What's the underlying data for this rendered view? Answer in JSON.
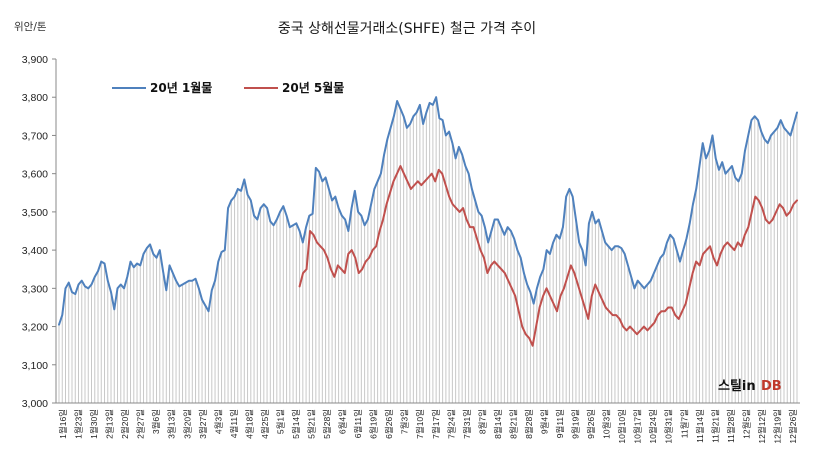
{
  "chart_data": {
    "type": "line",
    "title": "중국 상해선물거래소(SHFE)  철근 가격 추이",
    "unit_label": "위안/톤",
    "ylim": [
      3000,
      3900
    ],
    "y_ticks": [
      "3,000",
      "3,100",
      "3,200",
      "3,300",
      "3,400",
      "3,500",
      "3,600",
      "3,700",
      "3,800",
      "3,900"
    ],
    "legend_position": "top-left",
    "grid": false,
    "x_tick_labels": [
      "1월16일",
      "1월23일",
      "1월30일",
      "2월13일",
      "2월20일",
      "2월27일",
      "3월6일",
      "3월13일",
      "3월20일",
      "3월27일",
      "4월3일",
      "4월11일",
      "4월18일",
      "4월25일",
      "5월1일",
      "5월14일",
      "5월21일",
      "5월28일",
      "6월4일",
      "6월11일",
      "6월19일",
      "6월26일",
      "7월3일",
      "7월10일",
      "7월17일",
      "7월24일",
      "7월31일",
      "8월7일",
      "8월14일",
      "8월21일",
      "8월28일",
      "9월4일",
      "9월11일",
      "9월19일",
      "9월26일",
      "10월3일",
      "10월10일",
      "10월17일",
      "10월24일",
      "10월31일",
      "11월7일",
      "11월14일",
      "11월21일",
      "11월28일",
      "12월5일",
      "12월12일",
      "12월19일",
      "12월26일"
    ],
    "series": [
      {
        "name": "20년 1월물",
        "color": "#4f81bd",
        "values": [
          3205,
          3230,
          3300,
          3315,
          3290,
          3285,
          3310,
          3320,
          3305,
          3300,
          3310,
          3330,
          3345,
          3370,
          3365,
          3320,
          3290,
          3245,
          3300,
          3310,
          3300,
          3330,
          3370,
          3355,
          3365,
          3360,
          3390,
          3405,
          3415,
          3390,
          3380,
          3400,
          3345,
          3295,
          3360,
          3340,
          3320,
          3305,
          3310,
          3315,
          3320,
          3320,
          3325,
          3300,
          3270,
          3255,
          3240,
          3295,
          3320,
          3370,
          3395,
          3400,
          3510,
          3530,
          3540,
          3560,
          3555,
          3585,
          3545,
          3530,
          3490,
          3480,
          3510,
          3520,
          3510,
          3475,
          3465,
          3480,
          3500,
          3515,
          3490,
          3460,
          3465,
          3470,
          3450,
          3420,
          3460,
          3490,
          3495,
          3615,
          3605,
          3580,
          3590,
          3560,
          3530,
          3540,
          3510,
          3490,
          3480,
          3450,
          3510,
          3555,
          3500,
          3490,
          3465,
          3480,
          3520,
          3560,
          3580,
          3600,
          3650,
          3690,
          3720,
          3750,
          3790,
          3770,
          3750,
          3720,
          3730,
          3750,
          3760,
          3780,
          3730,
          3760,
          3785,
          3780,
          3800,
          3745,
          3740,
          3700,
          3710,
          3680,
          3640,
          3670,
          3650,
          3620,
          3600,
          3560,
          3530,
          3500,
          3490,
          3460,
          3420,
          3450,
          3480,
          3480,
          3460,
          3440,
          3460,
          3450,
          3430,
          3400,
          3380,
          3340,
          3310,
          3290,
          3260,
          3300,
          3330,
          3350,
          3400,
          3390,
          3420,
          3440,
          3430,
          3460,
          3540,
          3560,
          3540,
          3480,
          3420,
          3400,
          3360,
          3470,
          3500,
          3470,
          3480,
          3450,
          3420,
          3410,
          3400,
          3410,
          3410,
          3405,
          3390,
          3360,
          3330,
          3300,
          3320,
          3310,
          3300,
          3310,
          3320,
          3340,
          3360,
          3380,
          3390,
          3420,
          3440,
          3430,
          3400,
          3370,
          3400,
          3430,
          3470,
          3520,
          3560,
          3620,
          3680,
          3640,
          3660,
          3700,
          3640,
          3610,
          3630,
          3600,
          3610,
          3620,
          3590,
          3580,
          3600,
          3660,
          3700,
          3740,
          3750,
          3740,
          3710,
          3690,
          3680,
          3700,
          3710,
          3720,
          3740,
          3720,
          3710,
          3700,
          3730,
          3760
        ]
      },
      {
        "name": "20년 5월물",
        "color": "#c0504d",
        "values": [
          3305,
          3340,
          3350,
          3450,
          3440,
          3420,
          3410,
          3400,
          3380,
          3350,
          3330,
          3360,
          3350,
          3340,
          3390,
          3400,
          3380,
          3340,
          3350,
          3370,
          3380,
          3400,
          3410,
          3450,
          3480,
          3520,
          3550,
          3580,
          3600,
          3620,
          3600,
          3580,
          3560,
          3570,
          3580,
          3570,
          3580,
          3590,
          3600,
          3580,
          3610,
          3600,
          3570,
          3540,
          3520,
          3510,
          3500,
          3510,
          3480,
          3460,
          3460,
          3430,
          3400,
          3380,
          3340,
          3360,
          3370,
          3360,
          3350,
          3340,
          3320,
          3300,
          3280,
          3240,
          3200,
          3180,
          3170,
          3150,
          3200,
          3250,
          3280,
          3300,
          3280,
          3260,
          3240,
          3280,
          3300,
          3330,
          3360,
          3340,
          3310,
          3280,
          3250,
          3220,
          3280,
          3310,
          3290,
          3270,
          3250,
          3240,
          3230,
          3230,
          3220,
          3200,
          3190,
          3200,
          3190,
          3180,
          3190,
          3200,
          3190,
          3200,
          3210,
          3230,
          3240,
          3240,
          3250,
          3250,
          3230,
          3220,
          3240,
          3260,
          3300,
          3340,
          3370,
          3360,
          3390,
          3400,
          3410,
          3380,
          3360,
          3390,
          3410,
          3420,
          3410,
          3400,
          3420,
          3410,
          3440,
          3460,
          3500,
          3540,
          3530,
          3510,
          3480,
          3470,
          3480,
          3500,
          3520,
          3510,
          3490,
          3500,
          3520,
          3530
        ]
      }
    ]
  },
  "legend": {
    "series1_label": "20년 1월물",
    "series2_label": "20년 5월물"
  },
  "logo": {
    "part1": "스틸in",
    "part2": "DB"
  }
}
